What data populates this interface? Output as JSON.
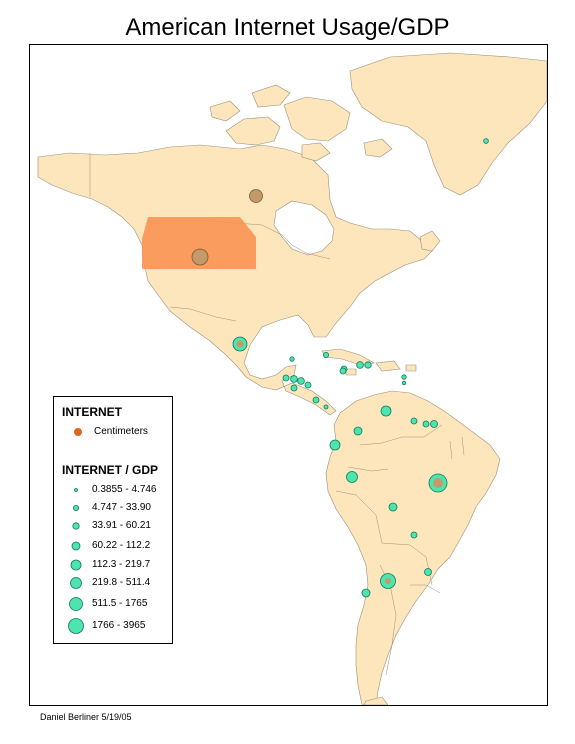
{
  "title": "American Internet Usage/GDP",
  "footer": "Daniel Berliner 5/19/05",
  "colors": {
    "land": "#fde5bc",
    "border": "#9a917c",
    "internet_fill": "#f98f4e",
    "symbol_fill": "#4ee4b0",
    "symbol_stroke": "#0e7a57"
  },
  "legend": {
    "internet_title": "INTERNET",
    "internet_item": "Centimeters",
    "ratio_title": "INTERNET / GDP",
    "classes": [
      "0.3855 - 4.746",
      "4.747 - 33.90",
      "33.91 - 60.21",
      "60.22 - 112.2",
      "112.3 - 219.7",
      "219.8 - 511.4",
      "511.5 - 1765",
      "1766 - 3965"
    ]
  }
}
